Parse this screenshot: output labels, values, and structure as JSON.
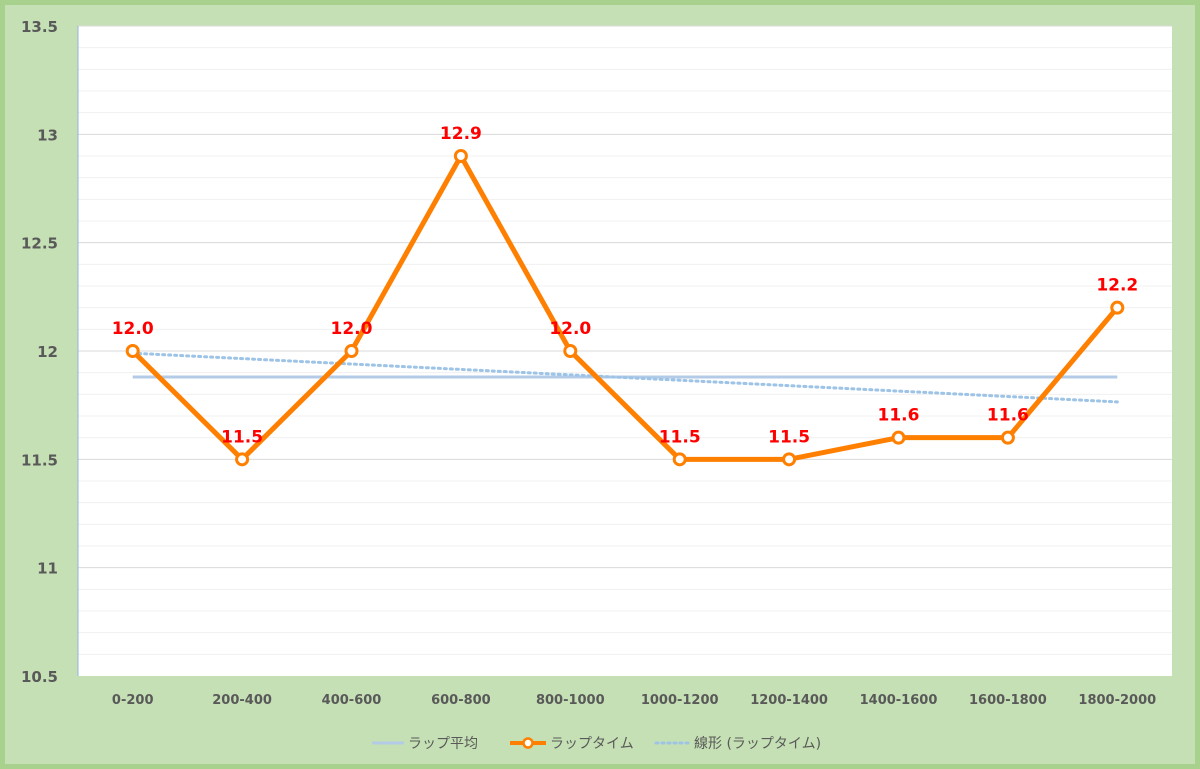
{
  "chart_data": {
    "type": "line",
    "categories": [
      "0-200",
      "200-400",
      "400-600",
      "600-800",
      "800-1000",
      "1000-1200",
      "1200-1400",
      "1400-1600",
      "1600-1800",
      "1800-2000"
    ],
    "ylim": [
      10.5,
      13.5
    ],
    "yticks": [
      "13.5",
      "13",
      "12.5",
      "12",
      "11.5",
      "11",
      "10.5"
    ],
    "ytick_values": [
      13.5,
      13,
      12.5,
      12,
      11.5,
      11,
      10.5
    ],
    "grid": true,
    "legend_position": "bottom",
    "series": [
      {
        "name": "ラップ平均",
        "values": [
          11.88,
          11.88,
          11.88,
          11.88,
          11.88,
          11.88,
          11.88,
          11.88,
          11.88,
          11.88
        ],
        "color": "#b4cbe8",
        "style": "solid"
      },
      {
        "name": "ラップタイム",
        "values": [
          12.0,
          11.5,
          12.0,
          12.9,
          12.0,
          11.5,
          11.5,
          11.6,
          11.6,
          12.2
        ],
        "labels": [
          "12.0",
          "11.5",
          "12.0",
          "12.9",
          "12.0",
          "11.5",
          "11.5",
          "11.6",
          "11.6",
          "12.2"
        ],
        "color": "#ff7f00",
        "label_color": "#ff0000",
        "style": "solid-markers"
      },
      {
        "name": "線形 (ラップタイム)",
        "values": [
          11.99,
          11.965,
          11.94,
          11.915,
          11.89,
          11.865,
          11.84,
          11.815,
          11.79,
          11.765
        ],
        "color": "#9dc3e6",
        "style": "dotted"
      }
    ]
  }
}
